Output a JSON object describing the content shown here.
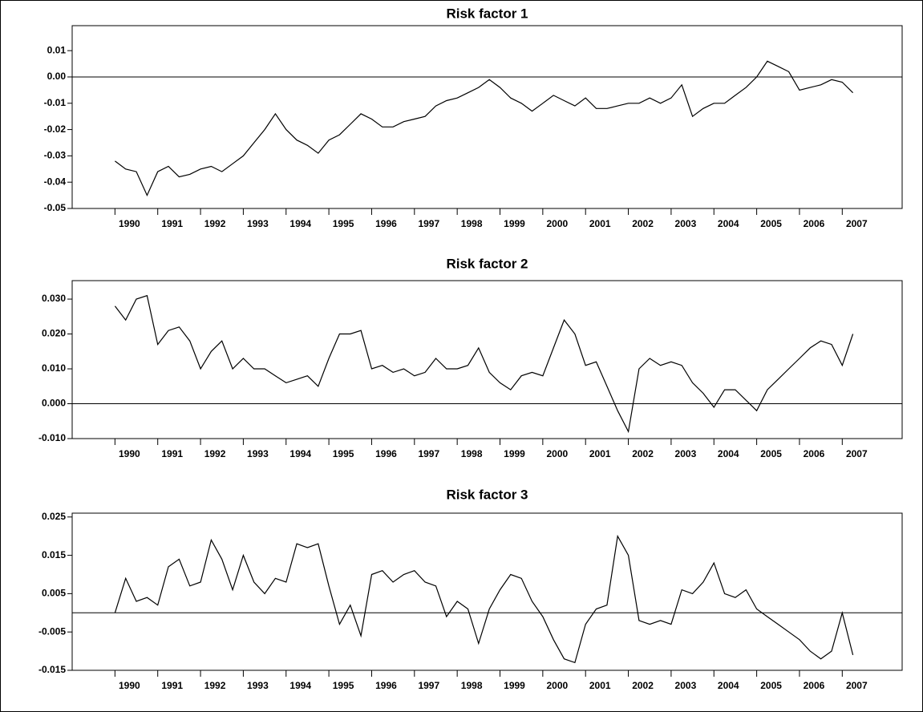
{
  "chart_data": [
    {
      "type": "line",
      "title": "Risk factor 1",
      "x": [
        1990,
        1990.25,
        1990.5,
        1990.75,
        1991,
        1991.25,
        1991.5,
        1991.75,
        1992,
        1992.25,
        1992.5,
        1992.75,
        1993,
        1993.25,
        1993.5,
        1993.75,
        1994,
        1994.25,
        1994.5,
        1994.75,
        1995,
        1995.25,
        1995.5,
        1995.75,
        1996,
        1996.25,
        1996.5,
        1996.75,
        1997,
        1997.25,
        1997.5,
        1997.75,
        1998,
        1998.25,
        1998.5,
        1998.75,
        1999,
        1999.25,
        1999.5,
        1999.75,
        2000,
        2000.25,
        2000.5,
        2000.75,
        2001,
        2001.25,
        2001.5,
        2001.75,
        2002,
        2002.25,
        2002.5,
        2002.75,
        2003,
        2003.25,
        2003.5,
        2003.75,
        2004,
        2004.25,
        2004.5,
        2004.75,
        2005,
        2005.25,
        2005.5,
        2005.75,
        2006,
        2006.25,
        2006.5,
        2006.75,
        2007,
        2007.25
      ],
      "series": [
        {
          "color": "#000000",
          "values": [
            -0.032,
            -0.035,
            -0.036,
            -0.045,
            -0.036,
            -0.034,
            -0.038,
            -0.037,
            -0.035,
            -0.034,
            -0.036,
            -0.033,
            -0.03,
            -0.025,
            -0.02,
            -0.014,
            -0.02,
            -0.024,
            -0.026,
            -0.029,
            -0.024,
            -0.022,
            -0.018,
            -0.014,
            -0.016,
            -0.019,
            -0.019,
            -0.017,
            -0.016,
            -0.015,
            -0.011,
            -0.009,
            -0.008,
            -0.006,
            -0.004,
            -0.001,
            -0.004,
            -0.008,
            -0.01,
            -0.013,
            -0.01,
            -0.007,
            -0.009,
            -0.011,
            -0.008,
            -0.012,
            -0.012,
            -0.011,
            -0.01,
            -0.01,
            -0.008,
            -0.01,
            -0.008,
            -0.003,
            -0.015,
            -0.012,
            -0.01,
            -0.01,
            -0.007,
            -0.004,
            0.0,
            0.006,
            0.004,
            0.002,
            -0.005,
            -0.004,
            -0.003,
            -0.001,
            -0.002,
            -0.006
          ]
        }
      ],
      "xlim": [
        1989,
        2008.4
      ],
      "xticks": [
        1990,
        1991,
        1992,
        1993,
        1994,
        1995,
        1996,
        1997,
        1998,
        1999,
        2000,
        2001,
        2002,
        2003,
        2004,
        2005,
        2006,
        2007
      ],
      "ylim": [
        -0.05,
        0.0195
      ],
      "yticks": [
        0.01,
        {
          "value": 0,
          "label": "0.00"
        },
        -0.01,
        -0.02,
        -0.03,
        -0.04,
        -0.05
      ],
      "reference_line": 0
    },
    {
      "type": "line",
      "title": "Risk factor 2",
      "x": [
        1990,
        1990.25,
        1990.5,
        1990.75,
        1991,
        1991.25,
        1991.5,
        1991.75,
        1992,
        1992.25,
        1992.5,
        1992.75,
        1993,
        1993.25,
        1993.5,
        1993.75,
        1994,
        1994.25,
        1994.5,
        1994.75,
        1995,
        1995.25,
        1995.5,
        1995.75,
        1996,
        1996.25,
        1996.5,
        1996.75,
        1997,
        1997.25,
        1997.5,
        1997.75,
        1998,
        1998.25,
        1998.5,
        1998.75,
        1999,
        1999.25,
        1999.5,
        1999.75,
        2000,
        2000.25,
        2000.5,
        2000.75,
        2001,
        2001.25,
        2001.5,
        2001.75,
        2002,
        2002.25,
        2002.5,
        2002.75,
        2003,
        2003.25,
        2003.5,
        2003.75,
        2004,
        2004.25,
        2004.5,
        2004.75,
        2005,
        2005.25,
        2005.5,
        2005.75,
        2006,
        2006.25,
        2006.5,
        2006.75,
        2007,
        2007.25
      ],
      "series": [
        {
          "color": "#000000",
          "values": [
            0.028,
            0.024,
            0.03,
            0.031,
            0.017,
            0.021,
            0.022,
            0.018,
            0.01,
            0.015,
            0.018,
            0.01,
            0.013,
            0.01,
            0.01,
            0.008,
            0.006,
            0.007,
            0.008,
            0.005,
            0.013,
            0.02,
            0.02,
            0.021,
            0.01,
            0.011,
            0.009,
            0.01,
            0.008,
            0.009,
            0.013,
            0.01,
            0.01,
            0.011,
            0.016,
            0.009,
            0.006,
            0.004,
            0.008,
            0.009,
            0.008,
            0.016,
            0.024,
            0.02,
            0.011,
            0.012,
            0.005,
            -0.002,
            -0.008,
            0.01,
            0.013,
            0.011,
            0.012,
            0.011,
            0.006,
            0.003,
            -0.001,
            0.004,
            0.004,
            0.001,
            -0.002,
            0.004,
            0.007,
            0.01,
            0.013,
            0.016,
            0.018,
            0.017,
            0.011,
            0.02
          ]
        }
      ],
      "xlim": [
        1989,
        2008.4
      ],
      "xticks": [
        1990,
        1991,
        1992,
        1993,
        1994,
        1995,
        1996,
        1997,
        1998,
        1999,
        2000,
        2001,
        2002,
        2003,
        2004,
        2005,
        2006,
        2007
      ],
      "ylim": [
        -0.01,
        0.0353
      ],
      "yticks": [
        {
          "value": 0.03,
          "label": "0.030"
        },
        {
          "value": 0.02,
          "label": "0.020"
        },
        {
          "value": 0.01,
          "label": "0.010"
        },
        {
          "value": 0,
          "label": "0.000"
        },
        {
          "value": -0.01,
          "label": "-0.010"
        }
      ],
      "reference_line": 0
    },
    {
      "type": "line",
      "title": "Risk factor 3",
      "x": [
        1990,
        1990.25,
        1990.5,
        1990.75,
        1991,
        1991.25,
        1991.5,
        1991.75,
        1992,
        1992.25,
        1992.5,
        1992.75,
        1993,
        1993.25,
        1993.5,
        1993.75,
        1994,
        1994.25,
        1994.5,
        1994.75,
        1995,
        1995.25,
        1995.5,
        1995.75,
        1996,
        1996.25,
        1996.5,
        1996.75,
        1997,
        1997.25,
        1997.5,
        1997.75,
        1998,
        1998.25,
        1998.5,
        1998.75,
        1999,
        1999.25,
        1999.5,
        1999.75,
        2000,
        2000.25,
        2000.5,
        2000.75,
        2001,
        2001.25,
        2001.5,
        2001.75,
        2002,
        2002.25,
        2002.5,
        2002.75,
        2003,
        2003.25,
        2003.5,
        2003.75,
        2004,
        2004.25,
        2004.5,
        2004.75,
        2005,
        2005.25,
        2005.5,
        2005.75,
        2006,
        2006.25,
        2006.5,
        2006.75,
        2007,
        2007.25
      ],
      "series": [
        {
          "color": "#000000",
          "values": [
            0.0,
            0.009,
            0.003,
            0.004,
            0.002,
            0.012,
            0.014,
            0.007,
            0.008,
            0.019,
            0.014,
            0.006,
            0.015,
            0.008,
            0.005,
            0.009,
            0.008,
            0.018,
            0.017,
            0.018,
            0.007,
            -0.003,
            0.002,
            -0.006,
            0.01,
            0.011,
            0.008,
            0.01,
            0.011,
            0.008,
            0.007,
            -0.001,
            0.003,
            0.001,
            -0.008,
            0.001,
            0.006,
            0.01,
            0.009,
            0.003,
            -0.001,
            -0.007,
            -0.012,
            -0.013,
            -0.003,
            0.001,
            0.002,
            0.02,
            0.015,
            -0.002,
            -0.003,
            -0.002,
            -0.003,
            0.006,
            0.005,
            0.008,
            0.013,
            0.005,
            0.004,
            0.006,
            0.001,
            -0.001,
            -0.003,
            -0.005,
            -0.007,
            -0.01,
            -0.012,
            -0.01,
            0.0,
            -0.011
          ]
        }
      ],
      "xlim": [
        1989,
        2008.4
      ],
      "xticks": [
        1990,
        1991,
        1992,
        1993,
        1994,
        1995,
        1996,
        1997,
        1998,
        1999,
        2000,
        2001,
        2002,
        2003,
        2004,
        2005,
        2006,
        2007
      ],
      "ylim": [
        -0.015,
        0.026
      ],
      "yticks": [
        0.025,
        0.015,
        0.005,
        -0.005,
        -0.015
      ],
      "reference_line": 0
    }
  ]
}
